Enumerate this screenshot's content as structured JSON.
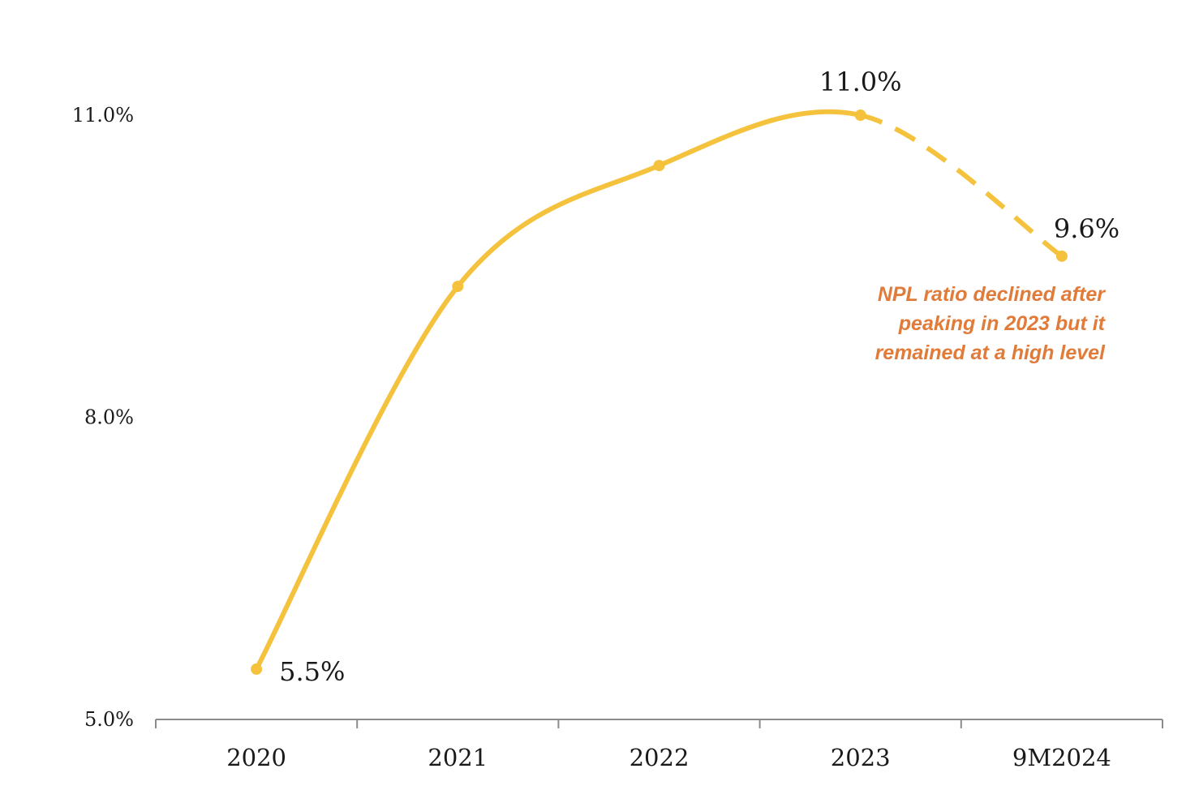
{
  "chart_data": {
    "type": "line",
    "title": "",
    "xlabel": "",
    "ylabel": "",
    "categories": [
      "2020",
      "2021",
      "2022",
      "2023",
      "9M2024"
    ],
    "series": [
      {
        "name": "NPL ratio",
        "values": [
          5.5,
          9.3,
          10.5,
          11.0,
          9.6
        ],
        "data_labels": [
          "5.5%",
          "",
          "",
          "11.0%",
          "9.6%"
        ],
        "projected_from_index": 3,
        "color": "#f4c23c"
      }
    ],
    "ylim": [
      5.0,
      11.0
    ],
    "yticks": [
      5.0,
      8.0,
      11.0
    ],
    "ytick_labels": [
      "5.0%",
      "8.0%",
      "11.0%"
    ],
    "grid": false,
    "annotation": {
      "lines": [
        "NPL ratio declined after",
        "peaking in 2023 but it",
        "remained at a high level"
      ],
      "color": "#e07b39"
    },
    "axis_color": "#8c8c8c"
  }
}
